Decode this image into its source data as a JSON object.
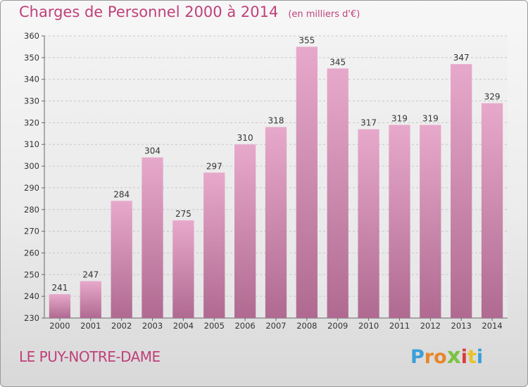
{
  "header": {
    "title": "Charges de Personnel 2000 à 2014",
    "subtitle": "(en milliers d'€)"
  },
  "footer": {
    "commune": "LE PUY-NOTRE-DAME",
    "logo": {
      "letters": [
        "P",
        "r",
        "o",
        "x",
        "i",
        "t",
        "i"
      ],
      "colors": [
        "#3aa0d8",
        "#e8852a",
        "#e8852a",
        "#7cc242",
        "#d93b3b",
        "#e8c22a",
        "#3aa0d8"
      ]
    }
  },
  "chart_data": {
    "type": "bar",
    "title": "Charges de Personnel 2000 à 2014",
    "subtitle": "(en milliers d'€)",
    "categories": [
      "2000",
      "2001",
      "2002",
      "2003",
      "2004",
      "2005",
      "2006",
      "2007",
      "2008",
      "2009",
      "2010",
      "2011",
      "2012",
      "2013",
      "2014"
    ],
    "values": [
      241,
      247,
      284,
      304,
      275,
      297,
      310,
      318,
      355,
      345,
      317,
      319,
      319,
      347,
      329
    ],
    "ylim": [
      230,
      360
    ],
    "yticks": [
      230,
      240,
      250,
      260,
      270,
      280,
      290,
      300,
      310,
      320,
      330,
      340,
      350,
      360
    ],
    "grid": true,
    "bar_color": "#d98cb3"
  }
}
